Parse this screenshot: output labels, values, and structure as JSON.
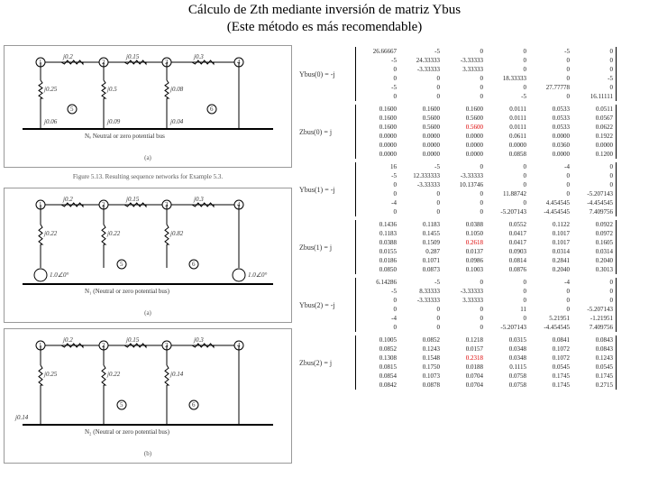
{
  "title_line1": "Cálculo de Zth mediante inversión de matriz Ybus",
  "title_line2": "(Este método es más recomendable)",
  "circuits": [
    {
      "label_a": "(a)",
      "bus_numbers": [
        1,
        2,
        3,
        4,
        5,
        6
      ],
      "series_imp": [
        "j0.2",
        "j0.15",
        "j0.3"
      ],
      "shunt_imp_top": [
        "j0.25",
        "j0.5",
        "j0.08"
      ],
      "shunt_imp_bot": [
        "j0.06",
        "j0.09",
        "j0.04"
      ],
      "ground_label": "Nₒ Neutral or zero potential bus"
    },
    {
      "label_a": "(a)",
      "bus_numbers": [
        1,
        2,
        3,
        4,
        5,
        6
      ],
      "series_imp": [
        "j0.2",
        "j0.15",
        "j0.3"
      ],
      "shunt_imp": [
        "j0.22",
        "j0.22",
        "j0.82"
      ],
      "ground_label": "N₁ (Neutral or zero potential bus)",
      "sources": [
        "1.0∠0°",
        "1.0∠0°"
      ]
    },
    {
      "label_b": "(b)",
      "bus_numbers": [
        1,
        2,
        3,
        4,
        5,
        6
      ],
      "series_imp": [
        "j0.2",
        "j0.15",
        "j0.3"
      ],
      "shunt_imp": [
        "j0.25",
        "j0.22",
        "j0.14"
      ],
      "side": [
        "j0.14"
      ],
      "ground_label": "N₂ (Neutral or zero potential bus)"
    }
  ],
  "figure_caption": "Figure 5.13. Resulting sequence networks for Example 5.3.",
  "matrices": [
    {
      "label": "Ybus(0) = -j",
      "rows": [
        [
          "26.66667",
          "-5",
          "0",
          "0",
          "-5",
          "0"
        ],
        [
          "-5",
          "24.33333",
          "-3.33333",
          "0",
          "0",
          "0"
        ],
        [
          "0",
          "-3.33333",
          "3.33333",
          "0",
          "0",
          "0"
        ],
        [
          "0",
          "0",
          "0",
          "18.33333",
          "0",
          "-5"
        ],
        [
          "-5",
          "0",
          "0",
          "0",
          "27.77778",
          "0"
        ],
        [
          "0",
          "0",
          "0",
          "-5",
          "0",
          "16.11111"
        ]
      ]
    },
    {
      "label": "Zbus(0) =  j",
      "hl": {
        "r": 2,
        "c": 2
      },
      "rows": [
        [
          "0.1600",
          "0.1600",
          "0.1600",
          "0.0111",
          "0.0533",
          "0.0511"
        ],
        [
          "0.1600",
          "0.5600",
          "0.5600",
          "0.0111",
          "0.0533",
          "0.0567"
        ],
        [
          "0.1600",
          "0.5600",
          "0.5600",
          "0.0111",
          "0.0533",
          "0.0622"
        ],
        [
          "0.0000",
          "0.0000",
          "0.0000",
          "0.0611",
          "0.0000",
          "0.1922"
        ],
        [
          "0.0000",
          "0.0000",
          "0.0000",
          "0.0000",
          "0.0360",
          "0.0000"
        ],
        [
          "0.0000",
          "0.0000",
          "0.0000",
          "0.0858",
          "0.0000",
          "0.1200"
        ]
      ]
    },
    {
      "label": "Ybus(1) = -j",
      "rows": [
        [
          "16",
          "-5",
          "0",
          "0",
          "-4",
          "0"
        ],
        [
          "-5",
          "12.333333",
          "-3.33333",
          "0",
          "0",
          "0"
        ],
        [
          "0",
          "-3.33333",
          "10.13746",
          "0",
          "0",
          "0"
        ],
        [
          "0",
          "0",
          "0",
          "11.88742",
          "0",
          "-5.207143"
        ],
        [
          "-4",
          "0",
          "0",
          "0",
          "4.454545",
          "-4.454545"
        ],
        [
          "0",
          "0",
          "0",
          "-5.207143",
          "-4.454545",
          "7.409756"
        ]
      ]
    },
    {
      "label": "Zbus(1) =  j",
      "hl": {
        "r": 2,
        "c": 2
      },
      "rows": [
        [
          "0.1436",
          "0.1183",
          "0.0388",
          "0.0552",
          "0.1122",
          "0.0922"
        ],
        [
          "0.1183",
          "0.1455",
          "0.1050",
          "0.0417",
          "0.1017",
          "0.0972"
        ],
        [
          "0.0388",
          "0.1509",
          "0.2618",
          "0.0417",
          "0.1017",
          "0.1605"
        ],
        [
          "0.0155",
          "0.287",
          "0.0137",
          "0.0903",
          "0.0314",
          "0.0314"
        ],
        [
          "0.0186",
          "0.1071",
          "0.0986",
          "0.0814",
          "0.2841",
          "0.2040"
        ],
        [
          "0.0850",
          "0.0873",
          "0.1003",
          "0.0876",
          "0.2040",
          "0.3013"
        ]
      ]
    },
    {
      "label": "Ybus(2) = -j",
      "rows": [
        [
          "6.14286",
          "-5",
          "0",
          "0",
          "-4",
          "0"
        ],
        [
          "-5",
          "8.33333",
          "-3.33333",
          "0",
          "0",
          "0"
        ],
        [
          "0",
          "-3.33333",
          "3.33333",
          "0",
          "0",
          "0"
        ],
        [
          "0",
          "0",
          "0",
          "11",
          "0",
          "-5.207143"
        ],
        [
          "-4",
          "0",
          "0",
          "0",
          "5.21951",
          "-1.21951"
        ],
        [
          "0",
          "0",
          "0",
          "-5.207143",
          "-4.454545",
          "7.409756"
        ]
      ]
    },
    {
      "label": "Zbus(2) =  j",
      "hl": {
        "r": 2,
        "c": 2
      },
      "rows": [
        [
          "0.1005",
          "0.0852",
          "0.1218",
          "0.0315",
          "0.0841",
          "0.0843"
        ],
        [
          "0.0852",
          "0.1243",
          "0.0157",
          "0.0348",
          "0.1072",
          "0.0843"
        ],
        [
          "0.1308",
          "0.1548",
          "0.2318",
          "0.0348",
          "0.1072",
          "0.1243"
        ],
        [
          "0.0815",
          "0.1750",
          "0.0188",
          "0.1115",
          "0.0545",
          "0.0545"
        ],
        [
          "0.0854",
          "0.1073",
          "0.0704",
          "0.0758",
          "0.1745",
          "0.1745"
        ],
        [
          "0.0842",
          "0.0878",
          "0.0704",
          "0.0758",
          "0.1745",
          "0.2715"
        ]
      ]
    }
  ]
}
